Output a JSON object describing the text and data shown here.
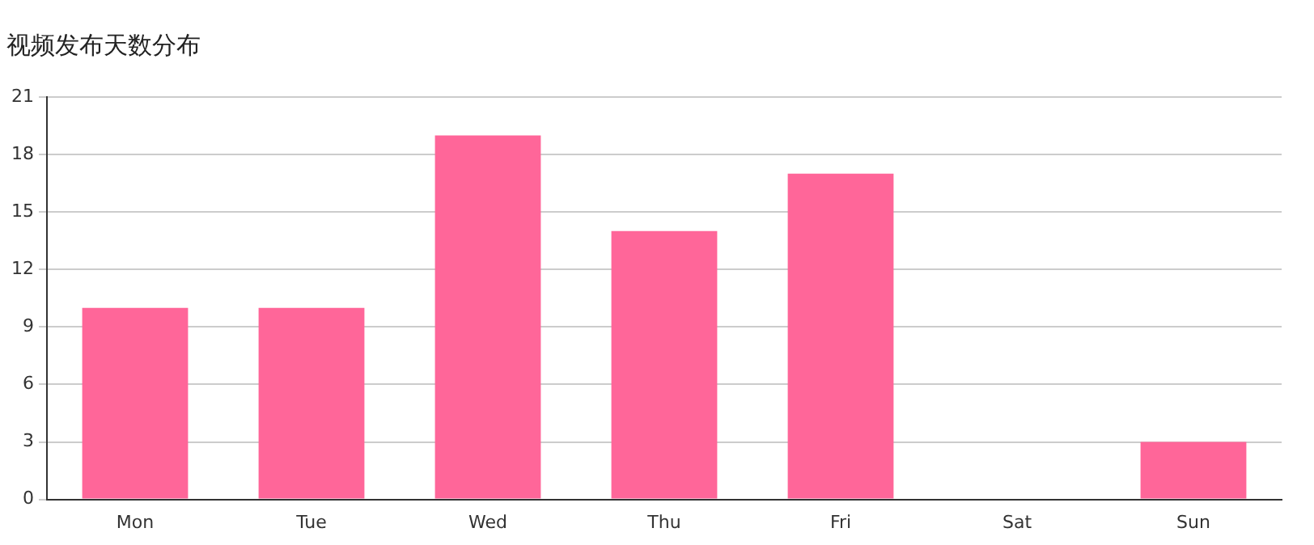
{
  "chart_data": {
    "type": "bar",
    "title": "视频发布天数分布",
    "categories": [
      "Mon",
      "Tue",
      "Wed",
      "Thu",
      "Fri",
      "Sat",
      "Sun"
    ],
    "values": [
      10,
      10,
      19,
      14,
      17,
      0,
      3
    ],
    "color": "#ff6699",
    "ylim": [
      0,
      21
    ],
    "yticks": [
      0,
      3,
      6,
      9,
      12,
      15,
      18,
      21
    ],
    "grid": "y",
    "legend": false
  }
}
